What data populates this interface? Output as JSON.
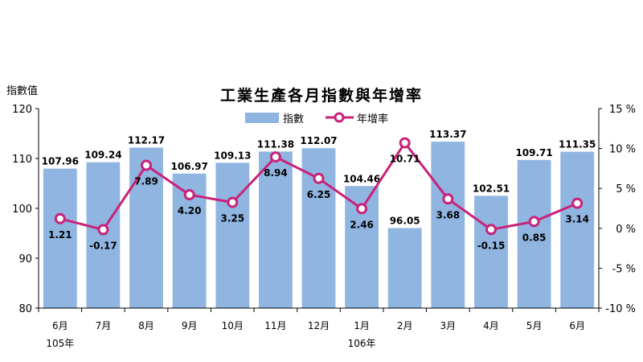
{
  "chart_data": {
    "type": "bar+line",
    "title": "工業生產各月指數與年增率",
    "categories": [
      "6月",
      "7月",
      "8月",
      "9月",
      "10月",
      "11月",
      "12月",
      "1月",
      "2月",
      "3月",
      "4月",
      "5月",
      "6月"
    ],
    "year_labels": [
      {
        "text": "105年",
        "at_index": 0
      },
      {
        "text": "106年",
        "at_index": 7
      }
    ],
    "series": [
      {
        "name": "指數",
        "type": "bar",
        "axis": "left",
        "color": "#8fb5e0",
        "values": [
          107.96,
          109.24,
          112.17,
          106.97,
          109.13,
          111.38,
          112.07,
          104.46,
          96.05,
          113.37,
          102.51,
          109.71,
          111.35
        ],
        "labels": [
          "107.96",
          "109.24",
          "112.17",
          "106.97",
          "109.13",
          "111.38",
          "112.07",
          "104.46",
          "96.05",
          "113.37",
          "102.51",
          "109.71",
          "111.35"
        ]
      },
      {
        "name": "年增率",
        "type": "line",
        "axis": "right",
        "color": "#c8227a",
        "values": [
          1.21,
          -0.17,
          7.89,
          4.2,
          3.25,
          8.94,
          6.25,
          2.46,
          10.71,
          3.68,
          -0.15,
          0.85,
          3.14
        ],
        "labels": [
          "1.21",
          "-0.17",
          "7.89",
          "4.20",
          "3.25",
          "8.94",
          "6.25",
          "2.46",
          "10.71",
          "3.68",
          "-0.15",
          "0.85",
          "3.14"
        ]
      }
    ],
    "y_left": {
      "label": "指數值",
      "range": [
        80,
        120
      ],
      "ticks": [
        80,
        90,
        100,
        110,
        120
      ],
      "tick_labels": [
        "80",
        "90",
        "100",
        "110",
        "120"
      ]
    },
    "y_right": {
      "range": [
        -10,
        15
      ],
      "ticks": [
        -10,
        -5,
        0,
        5,
        10,
        15
      ],
      "tick_labels": [
        "-10 %",
        "-5 %",
        "0 %",
        "5 %",
        "10 %",
        "15 %"
      ]
    },
    "legend_position": "top-center",
    "grid": false
  }
}
